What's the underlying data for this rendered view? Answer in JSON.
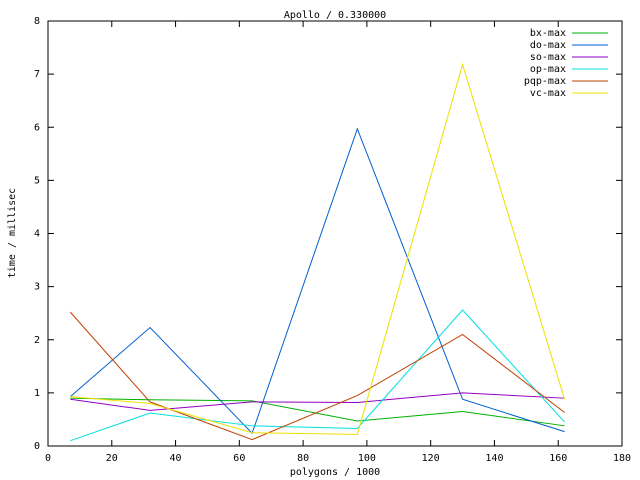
{
  "chart_data": {
    "type": "line",
    "title": "Apollo / 0.330000",
    "x_label": "polygons / 1000",
    "y_label": "time / millisec",
    "x": [
      7,
      32,
      64,
      97,
      130,
      162
    ],
    "series": [
      {
        "name": "bx-max",
        "color": "#00b000",
        "values": [
          0.9,
          0.87,
          0.85,
          0.47,
          0.65,
          0.38
        ]
      },
      {
        "name": "do-max",
        "color": "#0060d0",
        "values": [
          0.93,
          2.23,
          0.24,
          5.97,
          0.88,
          0.27
        ]
      },
      {
        "name": "so-max",
        "color": "#9000c0",
        "values": [
          0.88,
          0.67,
          0.83,
          0.82,
          1.0,
          0.9
        ]
      },
      {
        "name": "op-max",
        "color": "#00e0e0",
        "values": [
          0.1,
          0.62,
          0.38,
          0.33,
          2.56,
          0.45
        ]
      },
      {
        "name": "pqp-max",
        "color": "#c04000",
        "values": [
          2.52,
          0.83,
          0.12,
          0.95,
          2.1,
          0.63
        ]
      },
      {
        "name": "vc-max",
        "color": "#f0e000",
        "values": [
          0.93,
          0.8,
          0.25,
          0.22,
          7.18,
          0.88
        ]
      }
    ],
    "xlim": [
      0,
      180
    ],
    "xticks": [
      0,
      20,
      40,
      60,
      80,
      100,
      120,
      140,
      160,
      180
    ],
    "ylim": [
      0,
      8
    ],
    "yticks": [
      0,
      1,
      2,
      3,
      4,
      5,
      6,
      7,
      8
    ],
    "grid": false,
    "legend": "top-right"
  }
}
